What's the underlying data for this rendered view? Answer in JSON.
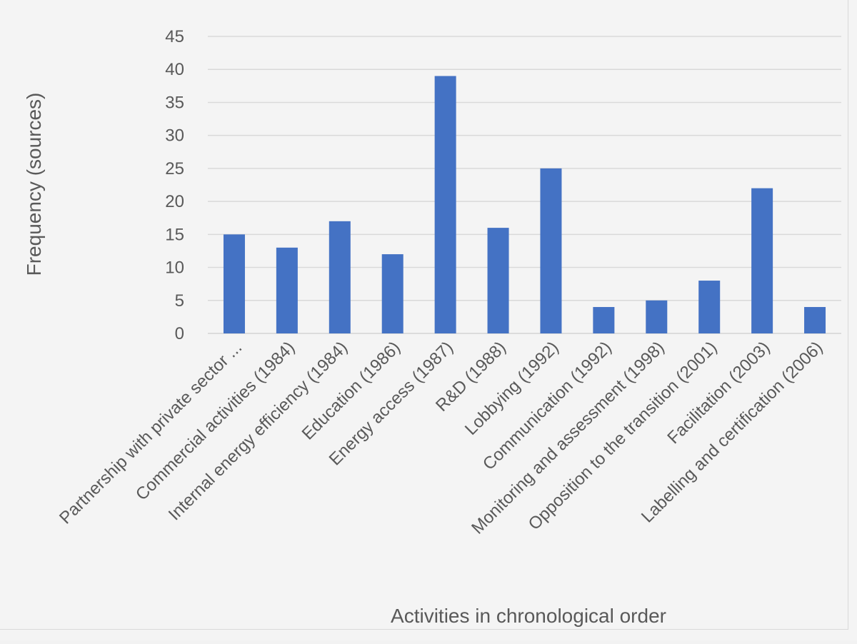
{
  "chart_data": {
    "type": "bar",
    "title": "",
    "xlabel": "Activities in chronological order",
    "ylabel": "Frequency (sources)",
    "ylim": [
      0,
      45
    ],
    "yticks": [
      0,
      5,
      10,
      15,
      20,
      25,
      30,
      35,
      40,
      45
    ],
    "grid": true,
    "legend": "none",
    "bar_color": "#4472c4",
    "categories": [
      "Partnership with private sector ...",
      "Commercial activities (1984)",
      "Internal energy efficiency (1984)",
      "Education (1986)",
      "Energy access (1987)",
      "R&D (1988)",
      "Lobbying (1992)",
      "Communication (1992)",
      "Monitoring and assessment (1998)",
      "Opposition to the transition (2001)",
      "Facilitation (2003)",
      "Labelling and certification (2006)"
    ],
    "values": [
      15,
      13,
      17,
      12,
      39,
      16,
      25,
      4,
      5,
      8,
      22,
      4
    ]
  }
}
